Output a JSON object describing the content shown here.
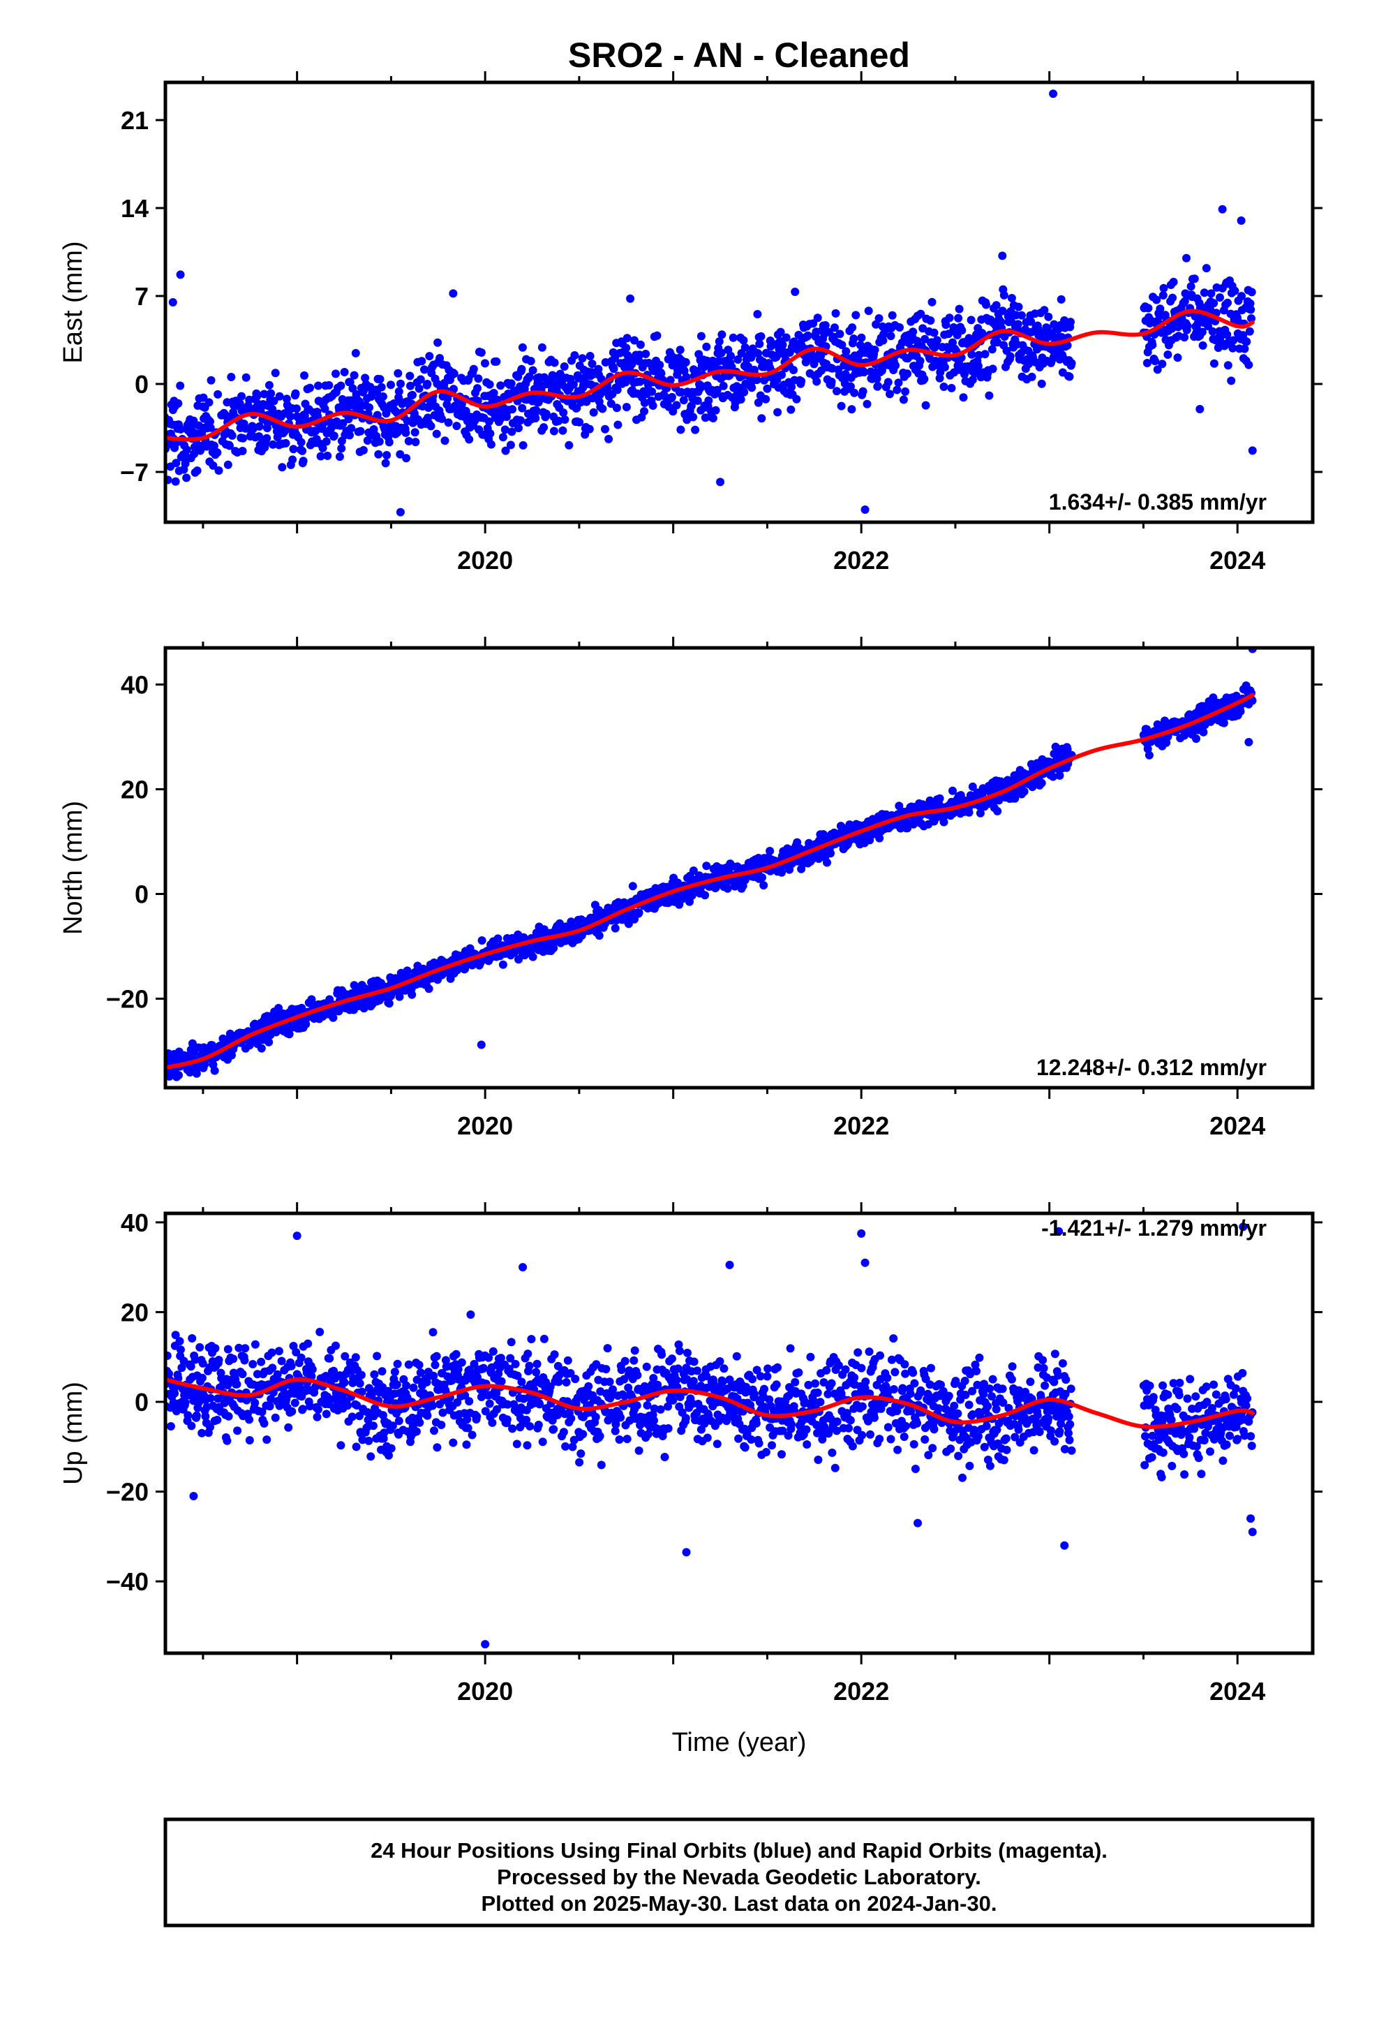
{
  "title": "SRO2  - AN - Cleaned",
  "chart_data": [
    {
      "type": "scatter",
      "ylabel": "East (mm)",
      "xlabel": "",
      "xlim": [
        2018.3,
        2024.4
      ],
      "ylim": [
        -11,
        24
      ],
      "xticks": [
        2020,
        2022,
        2024
      ],
      "yticks": [
        -7,
        0,
        7,
        14,
        21
      ],
      "rate_label": "1.634+/- 0.385 mm/yr",
      "series": [
        {
          "color": "#0000ff",
          "kind": "points",
          "gaps": [
            [
              2023.12,
              2023.5
            ]
          ],
          "x": [
            2018.25,
            2018.5,
            2018.75,
            2019.0,
            2019.25,
            2019.5,
            2019.75,
            2020.0,
            2020.25,
            2020.5,
            2020.75,
            2021.0,
            2021.25,
            2021.5,
            2021.75,
            2022.0,
            2022.25,
            2022.5,
            2022.75,
            2023.0,
            2023.12,
            2023.5,
            2023.75,
            2024.0,
            2024.08
          ],
          "y": [
            -4.2,
            -4.3,
            -2.4,
            -3.4,
            -2.3,
            -2.9,
            -0.6,
            -1.8,
            -0.7,
            -1.0,
            0.9,
            -0.1,
            1.0,
            0.8,
            2.8,
            1.5,
            2.7,
            2.3,
            4.2,
            3.2,
            3.8,
            4.0,
            5.8,
            4.6,
            4.9
          ],
          "scatter": 2.4,
          "outliers": [
            [
              2018.38,
              8.7
            ],
            [
              2018.34,
              6.5
            ],
            [
              2023.02,
              23.1
            ],
            [
              2023.92,
              13.9
            ],
            [
              2024.02,
              13.0
            ],
            [
              2024.08,
              -5.3
            ],
            [
              2019.55,
              -10.2
            ],
            [
              2022.02,
              -10.0
            ],
            [
              2021.25,
              -7.8
            ],
            [
              2019.83,
              7.2
            ],
            [
              2022.75,
              10.2
            ],
            [
              2023.8,
              -2.0
            ]
          ]
        },
        {
          "color": "#ff0000",
          "kind": "line",
          "x": [
            2018.25,
            2018.5,
            2018.75,
            2019.0,
            2019.25,
            2019.5,
            2019.75,
            2020.0,
            2020.25,
            2020.5,
            2020.75,
            2021.0,
            2021.25,
            2021.5,
            2021.75,
            2022.0,
            2022.25,
            2022.5,
            2022.75,
            2023.0,
            2023.25,
            2023.5,
            2023.75,
            2024.0,
            2024.08
          ],
          "y": [
            -4.2,
            -4.3,
            -2.4,
            -3.4,
            -2.3,
            -2.9,
            -0.6,
            -1.8,
            -0.7,
            -1.0,
            0.9,
            -0.1,
            1.0,
            0.8,
            2.8,
            1.5,
            2.7,
            2.3,
            4.2,
            3.2,
            4.1,
            4.0,
            5.8,
            4.6,
            4.9
          ]
        }
      ]
    },
    {
      "type": "scatter",
      "ylabel": "North (mm)",
      "xlabel": "",
      "xlim": [
        2018.3,
        2024.4
      ],
      "ylim": [
        -37,
        47
      ],
      "xticks": [
        2020,
        2022,
        2024
      ],
      "yticks": [
        -20,
        0,
        20,
        40
      ],
      "rate_label": "12.248+/- 0.312 mm/yr",
      "series": [
        {
          "color": "#0000ff",
          "kind": "points",
          "gaps": [
            [
              2023.12,
              2023.5
            ]
          ],
          "x": [
            2018.25,
            2018.5,
            2018.75,
            2019.0,
            2019.25,
            2019.5,
            2019.75,
            2020.0,
            2020.25,
            2020.5,
            2020.75,
            2021.0,
            2021.25,
            2021.5,
            2021.75,
            2022.0,
            2022.25,
            2022.5,
            2022.75,
            2023.0,
            2023.12,
            2023.5,
            2023.75,
            2024.0,
            2024.08
          ],
          "y": [
            -33.5,
            -31.5,
            -27.0,
            -23.5,
            -20.5,
            -18.0,
            -14.5,
            -11.5,
            -9.0,
            -7.0,
            -3.0,
            0.5,
            3.0,
            5.0,
            8.5,
            12.0,
            15.0,
            16.5,
            19.5,
            24.0,
            26.5,
            29.5,
            32.5,
            36.5,
            38.0
          ],
          "scatter": 1.8,
          "outliers": [
            [
              2019.98,
              -28.8
            ],
            [
              2024.08,
              46.8
            ],
            [
              2024.06,
              29.0
            ]
          ]
        },
        {
          "color": "#ff0000",
          "kind": "line",
          "x": [
            2018.25,
            2018.5,
            2018.75,
            2019.0,
            2019.25,
            2019.5,
            2019.75,
            2020.0,
            2020.25,
            2020.5,
            2020.75,
            2021.0,
            2021.25,
            2021.5,
            2021.75,
            2022.0,
            2022.25,
            2022.5,
            2022.75,
            2023.0,
            2023.25,
            2023.5,
            2023.75,
            2024.0,
            2024.08
          ],
          "y": [
            -33.5,
            -31.5,
            -27.0,
            -23.5,
            -20.5,
            -18.0,
            -14.5,
            -11.5,
            -9.0,
            -7.0,
            -3.0,
            0.5,
            3.0,
            5.0,
            8.5,
            12.0,
            15.0,
            16.5,
            19.5,
            24.0,
            27.5,
            29.5,
            32.5,
            36.5,
            38.0
          ]
        }
      ]
    },
    {
      "type": "scatter",
      "ylabel": "Up (mm)",
      "xlabel": "Time (year)",
      "xlim": [
        2018.3,
        2024.4
      ],
      "ylim": [
        -56,
        42
      ],
      "xticks": [
        2020,
        2022,
        2024
      ],
      "yticks": [
        -40,
        -20,
        0,
        20,
        40
      ],
      "rate_label": "-1.421+/- 1.279 mm/yr",
      "series": [
        {
          "color": "#0000ff",
          "kind": "points",
          "gaps": [
            [
              2023.12,
              2023.5
            ]
          ],
          "x": [
            2018.25,
            2018.5,
            2018.75,
            2019.0,
            2019.25,
            2019.5,
            2019.75,
            2020.0,
            2020.25,
            2020.5,
            2020.75,
            2021.0,
            2021.25,
            2021.5,
            2021.75,
            2022.0,
            2022.25,
            2022.5,
            2022.75,
            2023.0,
            2023.12,
            2023.5,
            2023.75,
            2024.0,
            2024.08
          ],
          "y": [
            5.5,
            3.0,
            3.0,
            5.0,
            2.5,
            -1.0,
            1.0,
            3.5,
            2.0,
            -1.5,
            0.0,
            2.5,
            1.0,
            -1.5,
            -2.0,
            1.0,
            -0.5,
            -3.0,
            -3.0,
            0.5,
            -1.0,
            -5.5,
            -4.5,
            -2.0,
            -2.5
          ],
          "scatter": 7.5,
          "outliers": [
            [
              2019.0,
              37.0
            ],
            [
              2020.0,
              -54.0
            ],
            [
              2021.07,
              -33.5
            ],
            [
              2022.0,
              37.5
            ],
            [
              2022.02,
              31.0
            ],
            [
              2023.08,
              -32.0
            ],
            [
              2023.05,
              38.0
            ],
            [
              2024.03,
              39.0
            ],
            [
              2024.08,
              -29.0
            ],
            [
              2024.07,
              -26.0
            ],
            [
              2018.45,
              -21.0
            ],
            [
              2020.2,
              30.0
            ],
            [
              2021.3,
              30.5
            ],
            [
              2022.3,
              -27.0
            ]
          ]
        },
        {
          "color": "#ff0000",
          "kind": "line",
          "x": [
            2018.25,
            2018.5,
            2018.75,
            2019.0,
            2019.25,
            2019.5,
            2019.75,
            2020.0,
            2020.25,
            2020.5,
            2020.75,
            2021.0,
            2021.25,
            2021.5,
            2021.75,
            2022.0,
            2022.25,
            2022.5,
            2022.75,
            2023.0,
            2023.25,
            2023.5,
            2023.75,
            2024.0,
            2024.08
          ],
          "y": [
            5.5,
            3.0,
            1.5,
            5.0,
            2.5,
            -1.0,
            1.0,
            3.5,
            2.0,
            -1.5,
            0.0,
            2.5,
            1.0,
            -3.0,
            -2.0,
            1.0,
            -0.5,
            -4.5,
            -3.0,
            0.5,
            -2.5,
            -5.5,
            -4.5,
            -2.0,
            -2.5
          ]
        }
      ]
    }
  ],
  "footer": {
    "line1": "24 Hour Positions Using Final Orbits (blue) and Rapid Orbits (magenta).",
    "line2": "Processed by the Nevada Geodetic Laboratory.",
    "line3": "Plotted on 2025-May-30. Last data on 2024-Jan-30."
  }
}
